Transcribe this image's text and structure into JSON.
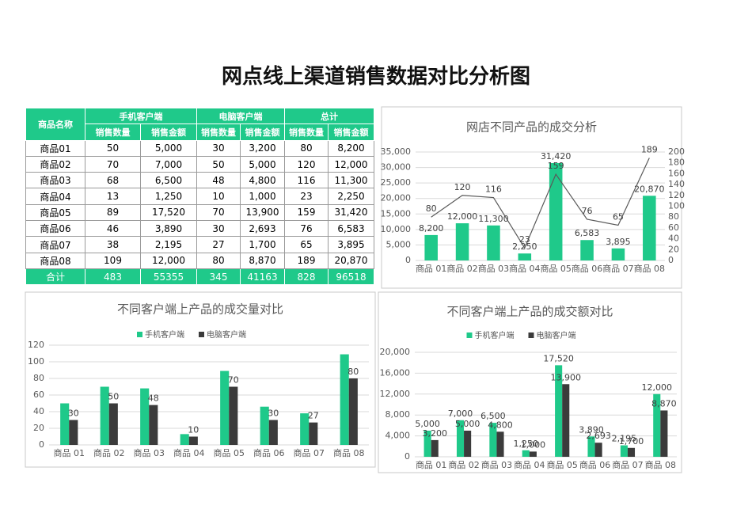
{
  "title": "网点线上渠道销售数据对比分析图",
  "table": {
    "header": [
      "商品名称",
      "手机客户端",
      "电脑客户端",
      "总计"
    ],
    "subheader": [
      "销售数量",
      "销售金额",
      "销售数量",
      "销售金额",
      "销售数量",
      "销售金额"
    ],
    "rows": [
      [
        "商品01",
        "50",
        "5,000",
        "30",
        "3,200",
        "80",
        "8,200"
      ],
      [
        "商品02",
        "70",
        "7,000",
        "50",
        "5,000",
        "120",
        "12,000"
      ],
      [
        "商品03",
        "68",
        "6,500",
        "48",
        "4,800",
        "116",
        "11,300"
      ],
      [
        "商品04",
        "13",
        "1,250",
        "10",
        "1,000",
        "23",
        "2,250"
      ],
      [
        "商品05",
        "89",
        "17,520",
        "70",
        "13,900",
        "159",
        "31,420"
      ],
      [
        "商品06",
        "46",
        "3,890",
        "30",
        "2,693",
        "76",
        "6,583"
      ],
      [
        "商品07",
        "38",
        "2,195",
        "27",
        "1,700",
        "65",
        "3,895"
      ],
      [
        "商品08",
        "109",
        "12,000",
        "80",
        "8,870",
        "189",
        "20,870"
      ]
    ],
    "total": [
      "合计",
      "483",
      "55355",
      "345",
      "41163",
      "828",
      "96518"
    ]
  },
  "chart_data": [
    {
      "type": "bar",
      "title": "网店不同产品的成交分析",
      "categories": [
        "商品 01",
        "商品 02",
        "商品 03",
        "商品 04",
        "商品 05",
        "商品 06",
        "商品 07",
        "商品 08"
      ],
      "series": [
        {
          "color": "#1fc98a",
          "values": [
            8200,
            12000,
            11300,
            2250,
            31420,
            6583,
            3895,
            20870
          ],
          "value_labels": [
            "8,200",
            "12,000",
            "11,300",
            "2,250",
            "31,420",
            "6,583",
            "3,895",
            "20,870"
          ]
        },
        {
          "type": "line",
          "axis": "y2",
          "color": "#595959",
          "values": [
            80,
            120,
            116,
            23,
            159,
            76,
            65,
            189
          ]
        }
      ],
      "ylim": [
        0,
        35000
      ],
      "yticks": [
        0,
        {
          "value": 5000,
          "label": "5,000"
        },
        {
          "value": 10000,
          "label": "10,000"
        },
        {
          "value": 15000,
          "label": "15,000"
        },
        {
          "value": 20000,
          "label": "20,000"
        },
        {
          "value": 25000,
          "label": "25,000"
        },
        {
          "value": 30000,
          "label": "30,000"
        },
        {
          "value": 35000,
          "label": "35,000"
        }
      ],
      "y2lim": [
        0,
        200
      ],
      "y2ticks": [
        0,
        20,
        40,
        60,
        80,
        100,
        120,
        140,
        160,
        180,
        200
      ],
      "grid": true,
      "legend": false
    },
    {
      "type": "bar",
      "title": "不同客户端上产品的成交量对比",
      "categories": [
        "商品 01",
        "商品 02",
        "商品 03",
        "商品 04",
        "商品 05",
        "商品 06",
        "商品 07",
        "商品 08"
      ],
      "series": [
        {
          "name": "手机客户端",
          "color": "#1fc98a",
          "values": [
            50,
            70,
            68,
            13,
            89,
            46,
            38,
            109
          ],
          "show_labels": false
        },
        {
          "name": "电脑客户端",
          "color": "#3b3b3b",
          "values": [
            30,
            50,
            48,
            10,
            70,
            30,
            27,
            80
          ],
          "show_labels": true
        }
      ],
      "ylim": [
        0,
        120
      ],
      "yticks": [
        0,
        20,
        40,
        60,
        80,
        100,
        120
      ],
      "grid": true,
      "legend": "top"
    },
    {
      "type": "bar",
      "title": "不同客户端上产品的成交额对比",
      "categories": [
        "商品 01",
        "商品 02",
        "商品 03",
        "商品 04",
        "商品 05",
        "商品 06",
        "商品 07",
        "商品 08"
      ],
      "series": [
        {
          "name": "手机客户端",
          "color": "#1fc98a",
          "values": [
            5000,
            7000,
            6500,
            1250,
            17520,
            3890,
            2195,
            12000
          ],
          "value_labels": [
            "5,000",
            "7,000",
            "6,500",
            "1,250",
            "17,520",
            "3,890",
            "2,195",
            "12,000"
          ]
        },
        {
          "name": "电脑客户端",
          "color": "#3b3b3b",
          "values": [
            3200,
            5000,
            4800,
            1000,
            13900,
            2693,
            1700,
            8870
          ],
          "value_labels": [
            "3,200",
            "5,000",
            "4,800",
            "1,000",
            "13,900",
            "2,693",
            "1,700",
            "8,870"
          ]
        }
      ],
      "ylim": [
        0,
        20000
      ],
      "yticks": [
        0,
        {
          "value": 4000,
          "label": "4,000"
        },
        {
          "value": 8000,
          "label": "8,000"
        },
        {
          "value": 12000,
          "label": "12,000"
        },
        {
          "value": 16000,
          "label": "16,000"
        },
        {
          "value": 20000,
          "label": "20,000"
        }
      ],
      "grid": true,
      "legend": "top"
    }
  ]
}
